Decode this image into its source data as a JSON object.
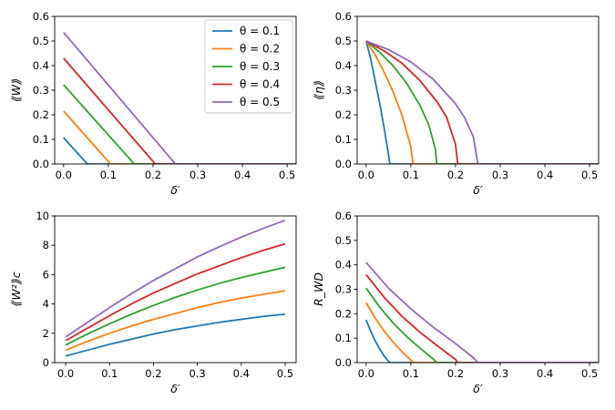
{
  "chart_data": [
    {
      "type": "line",
      "panel": "top-left",
      "xlabel": "δ′",
      "ylabel": "⟪W⟫",
      "xlim": [
        -0.02,
        0.52
      ],
      "ylim": [
        0.0,
        0.6
      ],
      "xticks": [
        "0.0",
        "0.1",
        "0.2",
        "0.3",
        "0.4",
        "0.5"
      ],
      "xtick_values": [
        0.0,
        0.1,
        0.2,
        0.3,
        0.4,
        0.5
      ],
      "yticks": [
        "0.0",
        "0.1",
        "0.2",
        "0.3",
        "0.4",
        "0.5",
        "0.6"
      ],
      "ytick_values": [
        0.0,
        0.1,
        0.2,
        0.3,
        0.4,
        0.5,
        0.6
      ],
      "legend": {
        "placement": "top-right"
      },
      "series": [
        {
          "name": "θ = 0.1",
          "color": "#1f77b4",
          "x": [
            0.0,
            0.053,
            0.52
          ],
          "y": [
            0.107,
            0.0,
            0.0
          ]
        },
        {
          "name": "θ = 0.2",
          "color": "#ff7f0e",
          "x": [
            0.0,
            0.105,
            0.52
          ],
          "y": [
            0.215,
            0.0,
            0.0
          ]
        },
        {
          "name": "θ = 0.3",
          "color": "#2ca02c",
          "x": [
            0.0,
            0.158,
            0.52
          ],
          "y": [
            0.322,
            0.0,
            0.0
          ]
        },
        {
          "name": "θ = 0.4",
          "color": "#d62728",
          "x": [
            0.0,
            0.205,
            0.52
          ],
          "y": [
            0.43,
            0.0,
            0.0
          ]
        },
        {
          "name": "θ = 0.5",
          "color": "#9467bd",
          "x": [
            0.0,
            0.25,
            0.52
          ],
          "y": [
            0.535,
            0.0,
            0.0
          ]
        }
      ]
    },
    {
      "type": "line",
      "panel": "top-right",
      "xlabel": "δ′",
      "ylabel": "⟪η⟫",
      "xlim": [
        -0.02,
        0.52
      ],
      "ylim": [
        0.0,
        0.6
      ],
      "xticks": [
        "0.0",
        "0.1",
        "0.2",
        "0.3",
        "0.4",
        "0.5"
      ],
      "xtick_values": [
        0.0,
        0.1,
        0.2,
        0.3,
        0.4,
        0.5
      ],
      "yticks": [
        "0.0",
        "0.1",
        "0.2",
        "0.3",
        "0.4",
        "0.5",
        "0.6"
      ],
      "ytick_values": [
        0.0,
        0.1,
        0.2,
        0.3,
        0.4,
        0.5,
        0.6
      ],
      "series": [
        {
          "name": "θ = 0.1",
          "color": "#1f77b4",
          "x": [
            0.0,
            0.01,
            0.02,
            0.03,
            0.04,
            0.05,
            0.053,
            0.52
          ],
          "y": [
            0.5,
            0.43,
            0.34,
            0.25,
            0.15,
            0.04,
            0.0,
            0.0
          ]
        },
        {
          "name": "θ = 0.2",
          "color": "#ff7f0e",
          "x": [
            0.0,
            0.02,
            0.04,
            0.06,
            0.08,
            0.1,
            0.105,
            0.52
          ],
          "y": [
            0.5,
            0.445,
            0.375,
            0.295,
            0.2,
            0.07,
            0.0,
            0.0
          ]
        },
        {
          "name": "θ = 0.3",
          "color": "#2ca02c",
          "x": [
            0.0,
            0.03,
            0.06,
            0.09,
            0.12,
            0.14,
            0.155,
            0.158,
            0.52
          ],
          "y": [
            0.5,
            0.455,
            0.4,
            0.33,
            0.24,
            0.16,
            0.06,
            0.0,
            0.0
          ]
        },
        {
          "name": "θ = 0.4",
          "color": "#d62728",
          "x": [
            0.0,
            0.04,
            0.08,
            0.12,
            0.16,
            0.18,
            0.2,
            0.205,
            0.52
          ],
          "y": [
            0.5,
            0.46,
            0.41,
            0.34,
            0.25,
            0.19,
            0.08,
            0.0,
            0.0
          ]
        },
        {
          "name": "θ = 0.5",
          "color": "#9467bd",
          "x": [
            0.0,
            0.05,
            0.1,
            0.15,
            0.2,
            0.22,
            0.24,
            0.25,
            0.52
          ],
          "y": [
            0.5,
            0.465,
            0.415,
            0.345,
            0.245,
            0.19,
            0.11,
            0.0,
            0.0
          ]
        }
      ]
    },
    {
      "type": "line",
      "panel": "bottom-left",
      "xlabel": "δ′",
      "ylabel": "⟪W²⟫c",
      "xlim": [
        -0.025,
        0.525
      ],
      "ylim": [
        0,
        10
      ],
      "xticks": [
        "0.0",
        "0.1",
        "0.2",
        "0.3",
        "0.4",
        "0.5"
      ],
      "xtick_values": [
        0.0,
        0.1,
        0.2,
        0.3,
        0.4,
        0.5
      ],
      "yticks": [
        "0",
        "2",
        "4",
        "6",
        "8",
        "10"
      ],
      "ytick_values": [
        0,
        2,
        4,
        6,
        8,
        10
      ],
      "series": [
        {
          "name": "θ = 0.1",
          "color": "#1f77b4",
          "x": [
            0.0,
            0.05,
            0.1,
            0.15,
            0.2,
            0.25,
            0.3,
            0.35,
            0.4,
            0.45,
            0.5
          ],
          "y": [
            0.45,
            0.85,
            1.25,
            1.6,
            1.95,
            2.25,
            2.5,
            2.75,
            2.95,
            3.15,
            3.3
          ]
        },
        {
          "name": "θ = 0.2",
          "color": "#ff7f0e",
          "x": [
            0.0,
            0.05,
            0.1,
            0.15,
            0.2,
            0.25,
            0.3,
            0.35,
            0.4,
            0.45,
            0.5
          ],
          "y": [
            0.85,
            1.45,
            2.0,
            2.5,
            2.95,
            3.35,
            3.75,
            4.1,
            4.4,
            4.65,
            4.9
          ]
        },
        {
          "name": "θ = 0.3",
          "color": "#2ca02c",
          "x": [
            0.0,
            0.05,
            0.1,
            0.15,
            0.2,
            0.25,
            0.3,
            0.35,
            0.4,
            0.45,
            0.5
          ],
          "y": [
            1.2,
            1.95,
            2.65,
            3.3,
            3.9,
            4.45,
            4.95,
            5.4,
            5.8,
            6.15,
            6.5
          ]
        },
        {
          "name": "θ = 0.4",
          "color": "#d62728",
          "x": [
            0.0,
            0.05,
            0.1,
            0.15,
            0.2,
            0.25,
            0.3,
            0.35,
            0.4,
            0.45,
            0.5
          ],
          "y": [
            1.5,
            2.35,
            3.2,
            4.0,
            4.75,
            5.4,
            6.05,
            6.6,
            7.15,
            7.65,
            8.1
          ]
        },
        {
          "name": "θ = 0.5",
          "color": "#9467bd",
          "x": [
            0.0,
            0.05,
            0.1,
            0.15,
            0.2,
            0.25,
            0.3,
            0.35,
            0.4,
            0.45,
            0.5
          ],
          "y": [
            1.75,
            2.75,
            3.75,
            4.7,
            5.6,
            6.4,
            7.2,
            7.9,
            8.55,
            9.15,
            9.7
          ]
        }
      ]
    },
    {
      "type": "line",
      "panel": "bottom-right",
      "xlabel": "δ′",
      "ylabel": "R_WD",
      "xlim": [
        -0.02,
        0.52
      ],
      "ylim": [
        0.0,
        0.6
      ],
      "xticks": [
        "0.0",
        "0.1",
        "0.2",
        "0.3",
        "0.4",
        "0.5"
      ],
      "xtick_values": [
        0.0,
        0.1,
        0.2,
        0.3,
        0.4,
        0.5
      ],
      "yticks": [
        "0.0",
        "0.1",
        "0.2",
        "0.3",
        "0.4",
        "0.5",
        "0.6"
      ],
      "ytick_values": [
        0.0,
        0.1,
        0.2,
        0.3,
        0.4,
        0.5,
        0.6
      ],
      "series": [
        {
          "name": "θ = 0.1",
          "color": "#1f77b4",
          "x": [
            0.0,
            0.01,
            0.02,
            0.03,
            0.04,
            0.05,
            0.053,
            0.52
          ],
          "y": [
            0.175,
            0.13,
            0.09,
            0.057,
            0.028,
            0.006,
            0.0,
            0.0
          ]
        },
        {
          "name": "θ = 0.2",
          "color": "#ff7f0e",
          "x": [
            0.0,
            0.02,
            0.04,
            0.06,
            0.08,
            0.1,
            0.105,
            0.52
          ],
          "y": [
            0.245,
            0.183,
            0.13,
            0.085,
            0.045,
            0.01,
            0.0,
            0.0
          ]
        },
        {
          "name": "θ = 0.3",
          "color": "#2ca02c",
          "x": [
            0.0,
            0.03,
            0.06,
            0.09,
            0.12,
            0.15,
            0.158,
            0.52
          ],
          "y": [
            0.305,
            0.228,
            0.163,
            0.108,
            0.06,
            0.015,
            0.0,
            0.0
          ]
        },
        {
          "name": "θ = 0.4",
          "color": "#d62728",
          "x": [
            0.0,
            0.04,
            0.08,
            0.12,
            0.16,
            0.2,
            0.205,
            0.52
          ],
          "y": [
            0.36,
            0.268,
            0.19,
            0.125,
            0.068,
            0.013,
            0.0,
            0.0
          ]
        },
        {
          "name": "θ = 0.5",
          "color": "#9467bd",
          "x": [
            0.0,
            0.05,
            0.1,
            0.15,
            0.2,
            0.24,
            0.25,
            0.52
          ],
          "y": [
            0.41,
            0.305,
            0.22,
            0.145,
            0.078,
            0.02,
            0.0,
            0.0
          ]
        }
      ]
    }
  ]
}
